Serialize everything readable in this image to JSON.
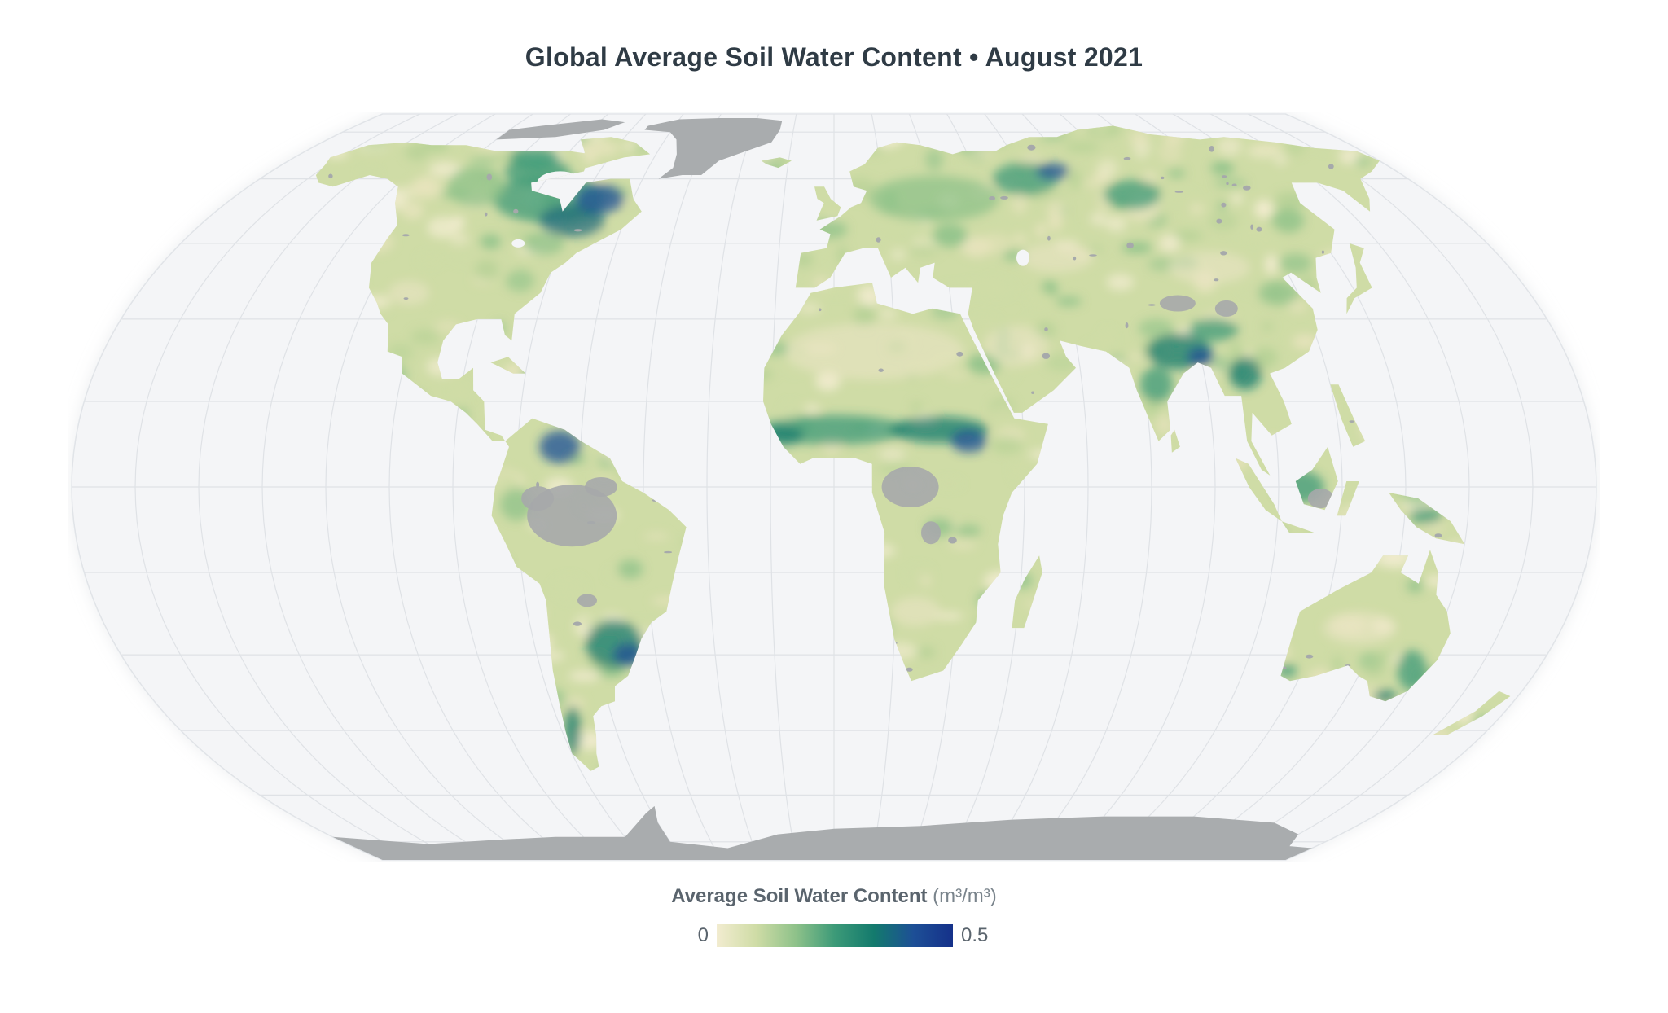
{
  "title": "Global Average Soil Water Content • August 2021",
  "legend": {
    "label": "Average Soil Water Content",
    "unit": "(m³/m³)",
    "min_label": "0",
    "max_label": "0.5",
    "min_value": 0,
    "max_value": 0.5,
    "colors": [
      "#f2ecd0",
      "#cfdca6",
      "#8fc28a",
      "#3c9a78",
      "#137a6d",
      "#1d4f96",
      "#15318a"
    ]
  },
  "map": {
    "projection": "Equal Earth",
    "graticule": true,
    "colors": {
      "ocean": "#f4f5f7",
      "graticule": "#dfe2e6",
      "no_data": "#a6a9ab",
      "ice": "#a9acae"
    }
  }
}
